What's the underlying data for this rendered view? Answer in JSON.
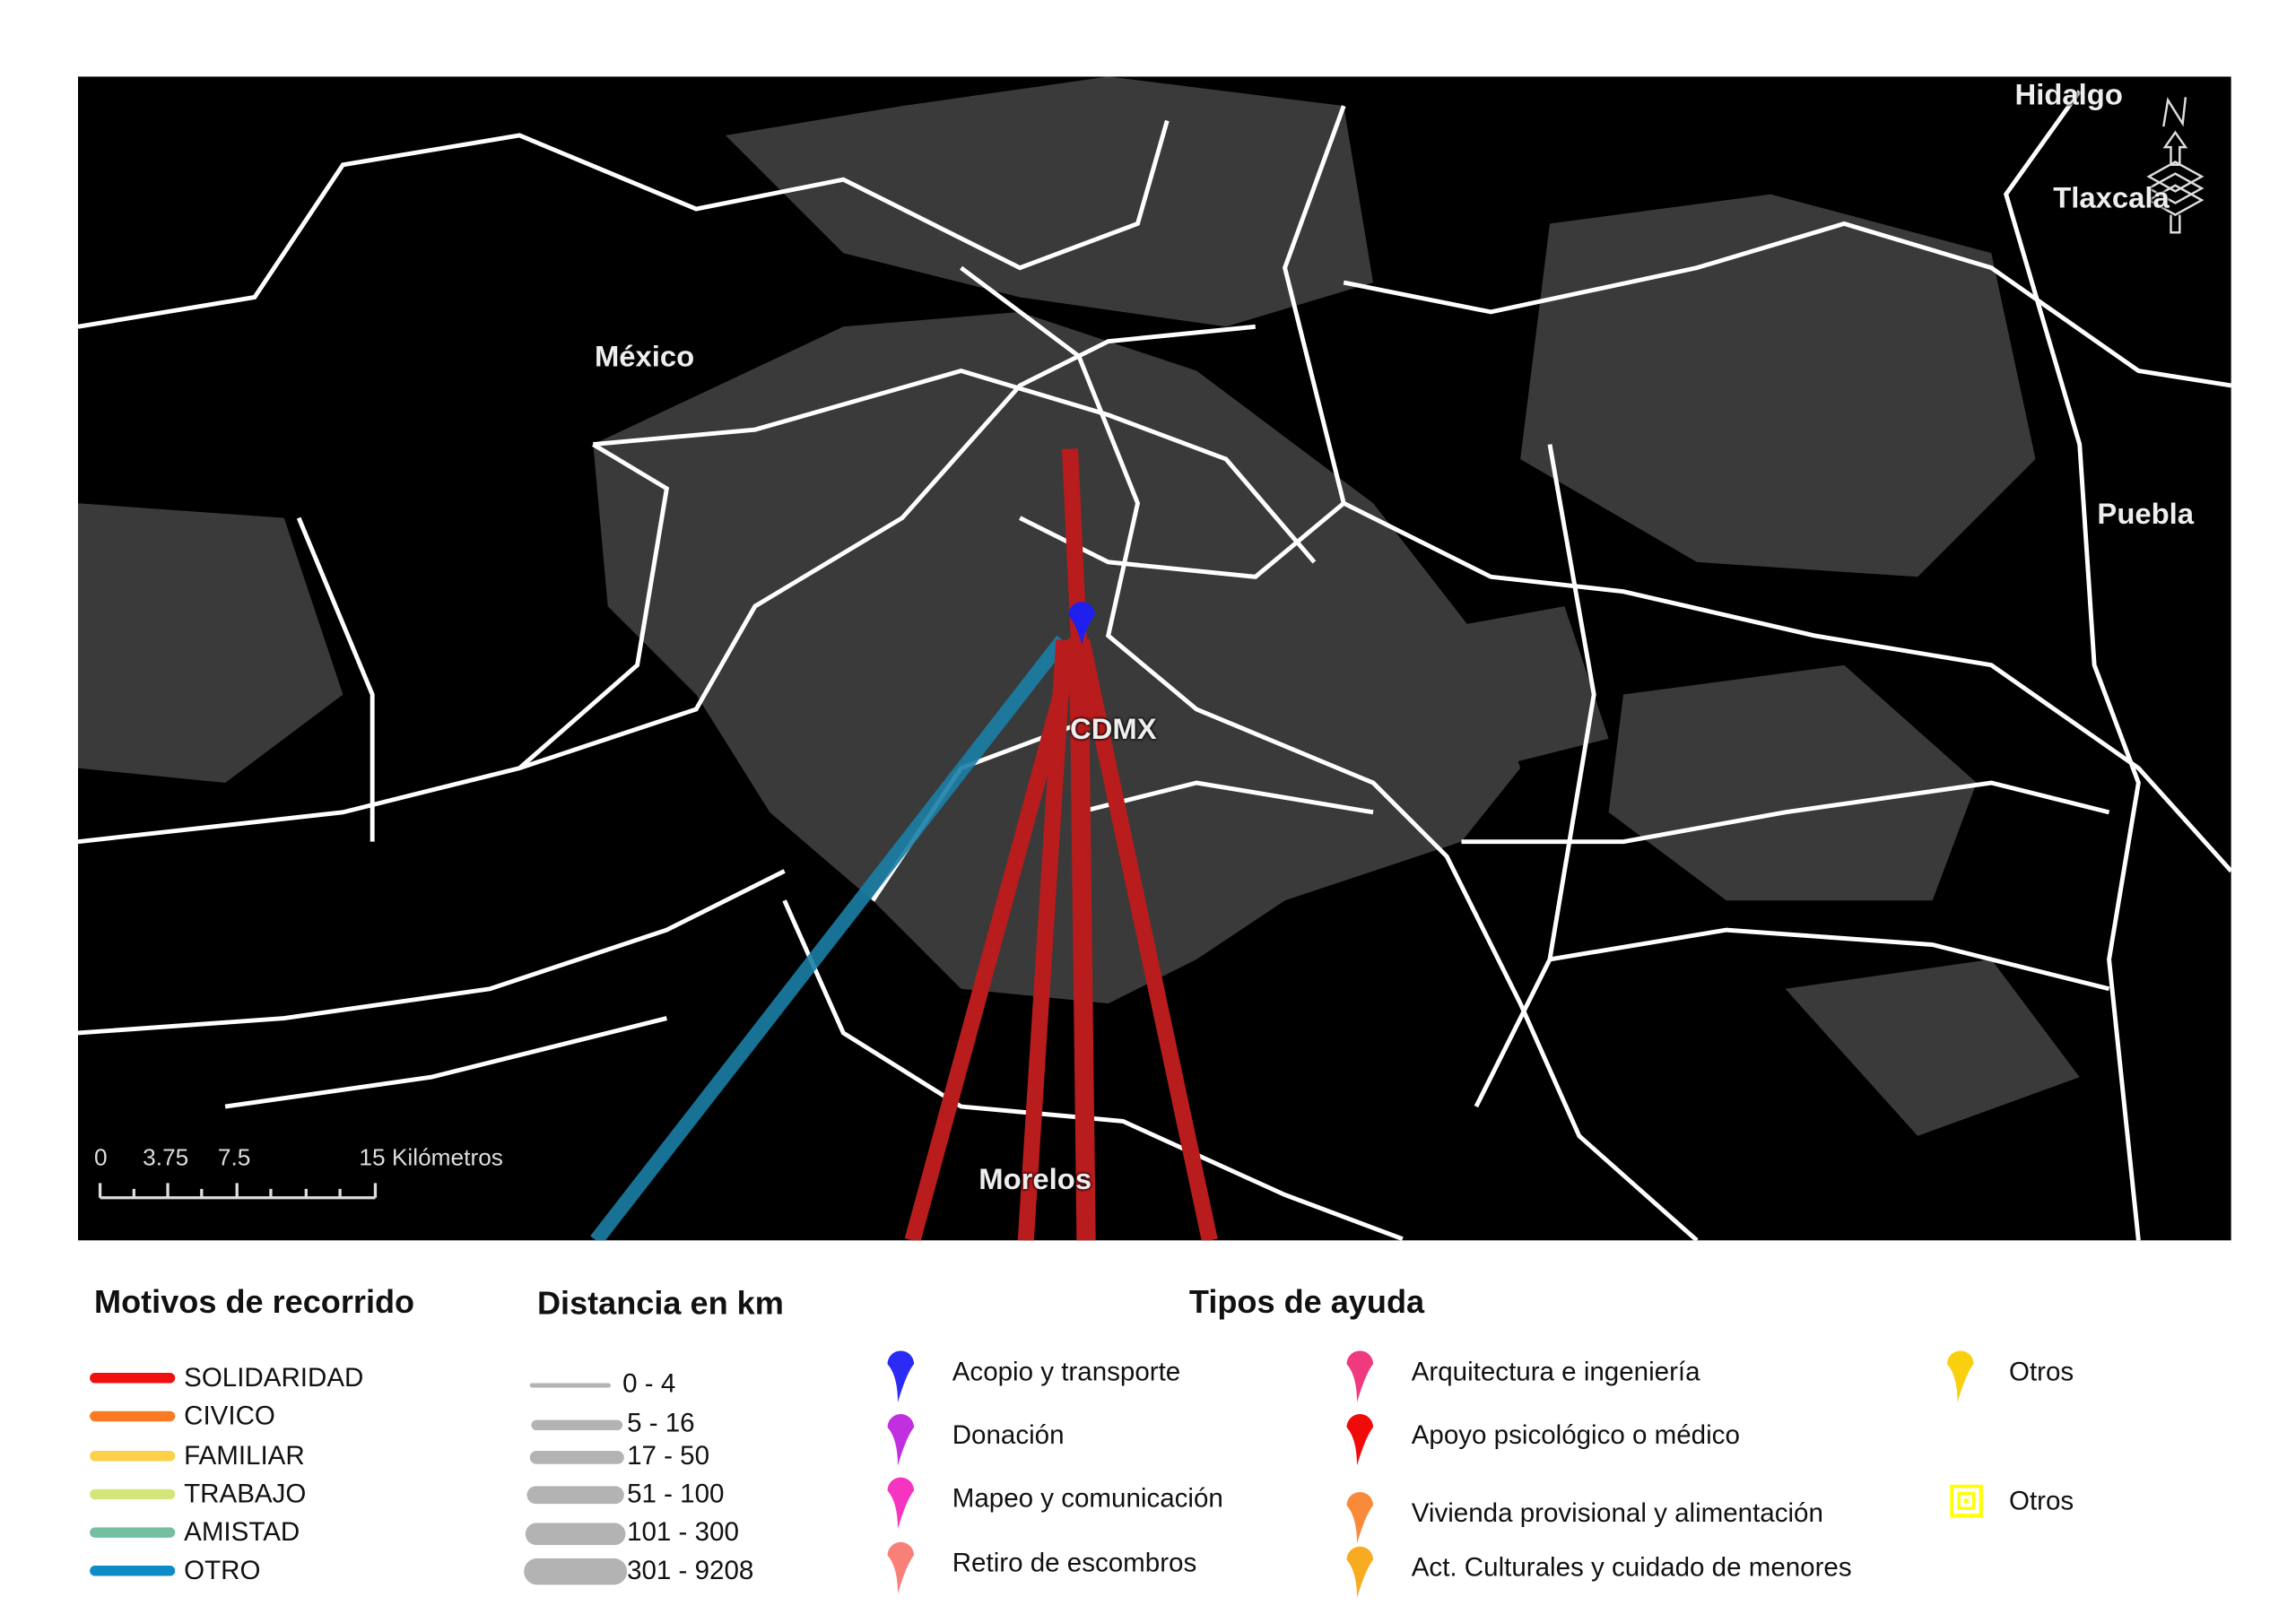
{
  "map": {
    "labels": {
      "mexico": "México",
      "hidalgo": "Hidalgo",
      "tlaxcala": "Tlaxcala",
      "puebla": "Puebla",
      "cdmx": "CDMX",
      "morelos": "Morelos"
    },
    "north_arrow": "N",
    "scale_bar": {
      "ticks": [
        "0",
        "3.75",
        "7.5",
        "15 Kilómetros"
      ]
    },
    "colors": {
      "background": "#000000",
      "urban": "#3a3a3a",
      "borders": "#ffffff",
      "solidaridad": "#b81c1c",
      "otro": "#1a7fa6",
      "marker": "#2020ee"
    }
  },
  "legend_motivos": {
    "title": "Motivos de recorrido",
    "items": [
      {
        "label": "SOLIDARIDAD",
        "color": "#f01010"
      },
      {
        "label": "CIVICO",
        "color": "#f97a22"
      },
      {
        "label": "FAMILIAR",
        "color": "#fdd04a"
      },
      {
        "label": "TRABAJO",
        "color": "#d4e57a"
      },
      {
        "label": "AMISTAD",
        "color": "#74bfa2"
      },
      {
        "label": "OTRO",
        "color": "#0f8bc8"
      }
    ]
  },
  "legend_distancia": {
    "title": "Distancia en km",
    "items": [
      {
        "label": "0 - 4"
      },
      {
        "label": "5 - 16"
      },
      {
        "label": "17 - 50"
      },
      {
        "label": "51 - 100"
      },
      {
        "label": "101 - 300"
      },
      {
        "label": "301 - 9208"
      }
    ]
  },
  "legend_ayuda": {
    "title": "Tipos de ayuda",
    "items": [
      {
        "label": "Acopio y transporte",
        "color": "#2b2bf5",
        "icon": "map-pin-icon"
      },
      {
        "label": "Donación",
        "color": "#c030e0",
        "icon": "map-pin-icon"
      },
      {
        "label": "Mapeo y comunicación",
        "color": "#f535c0",
        "icon": "map-pin-icon"
      },
      {
        "label": "Retiro de escombros",
        "color": "#f88078",
        "icon": "map-pin-icon"
      },
      {
        "label": "Arquitectura e ingeniería",
        "color": "#f03a80",
        "icon": "map-pin-icon"
      },
      {
        "label": "Apoyo psicológico o médico",
        "color": "#f00a0a",
        "icon": "map-pin-icon"
      },
      {
        "label": "Vivienda provisional y alimentación",
        "color": "#f88a3a",
        "icon": "map-pin-icon"
      },
      {
        "label": "Act. Culturales y cuidado de menores",
        "color": "#f8aa20",
        "icon": "map-pin-icon"
      },
      {
        "label": "Otros",
        "color": "#f8d010",
        "icon": "map-pin-icon"
      },
      {
        "label": "Otros",
        "color": "#ffff00",
        "icon": "square-target-icon"
      }
    ]
  }
}
